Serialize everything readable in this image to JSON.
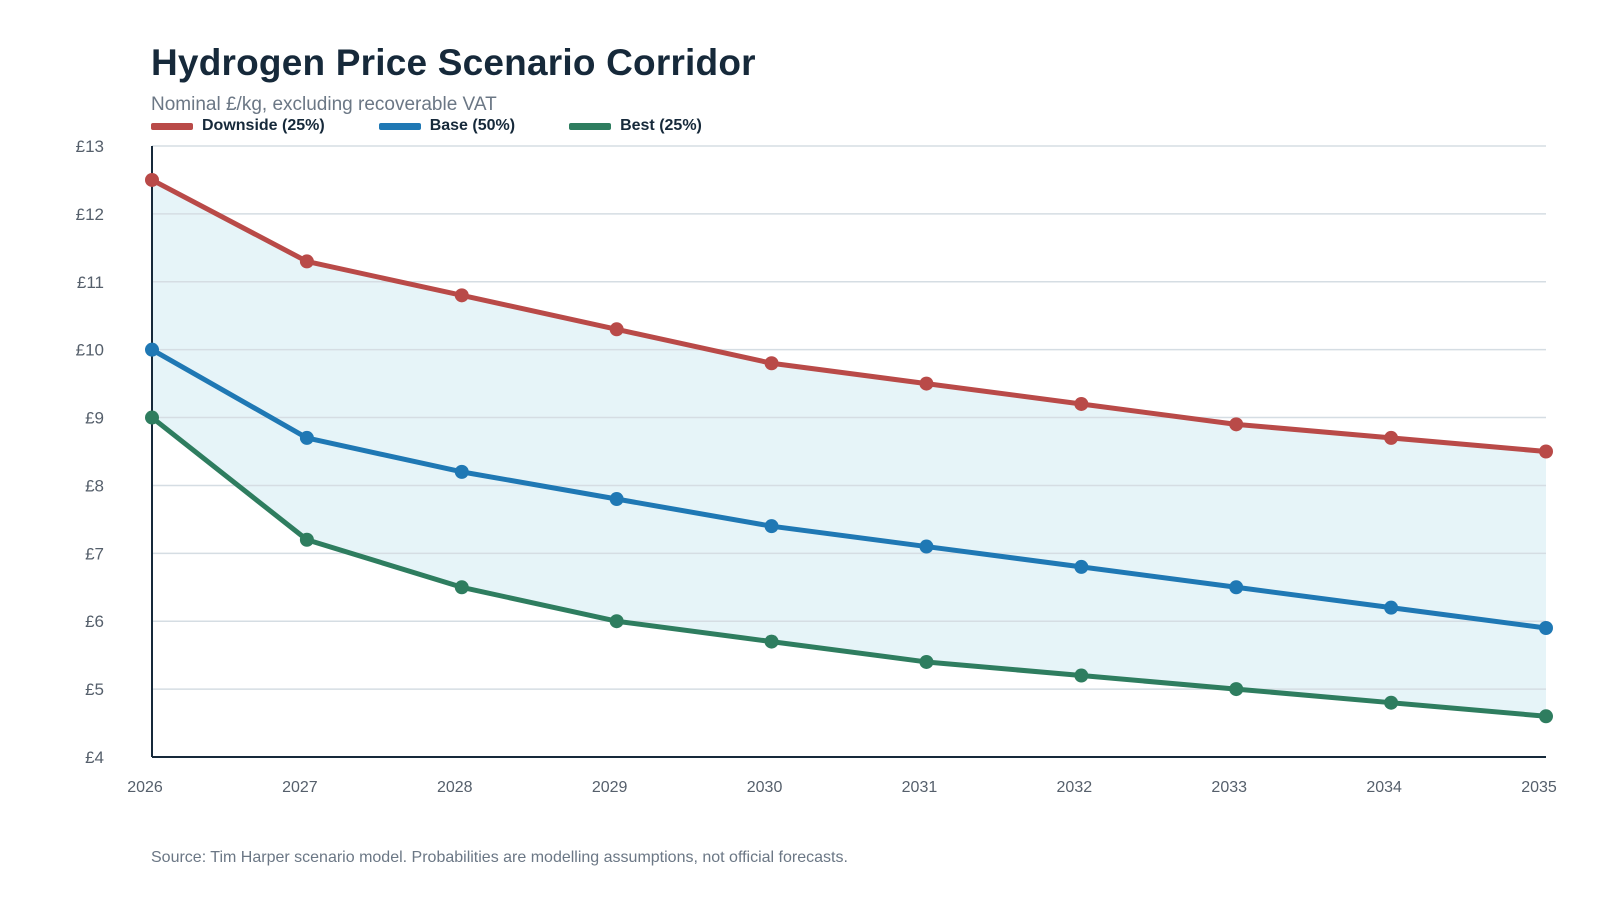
{
  "header": {
    "title": "Hydrogen Price Scenario Corridor",
    "subtitle": "Nominal £/kg, excluding recoverable VAT"
  },
  "footer": {
    "source": "Source: Tim Harper scenario model. Probabilities are modelling assumptions, not official forecasts."
  },
  "colors": {
    "downside": "#b94a48",
    "base": "#1f78b4",
    "best": "#2e7d5f",
    "corridor_fill": "#e6f4f8",
    "grid": "#d5dde3",
    "axis": "#16293a"
  },
  "chart_data": {
    "type": "line",
    "title": "Hydrogen Price Scenario Corridor",
    "subtitle": "Nominal £/kg, excluding recoverable VAT",
    "xlabel": "",
    "ylabel": "",
    "x": [
      "2026",
      "2027",
      "2028",
      "2029",
      "2030",
      "2031",
      "2032",
      "2033",
      "2034",
      "2035"
    ],
    "ylim": [
      4,
      13
    ],
    "ytick_labels": [
      "£4",
      "£5",
      "£6",
      "£7",
      "£8",
      "£9",
      "£10",
      "£11",
      "£12",
      "£13"
    ],
    "ytick_values": [
      4,
      5,
      6,
      7,
      8,
      9,
      10,
      11,
      12,
      13
    ],
    "grid": true,
    "legend_position": "top-left",
    "shaded_corridor": "between Downside and Best",
    "series": [
      {
        "key": "downside",
        "name": "Downside (25%)",
        "color": "#b94a48",
        "values": [
          12.5,
          11.3,
          10.8,
          10.3,
          9.8,
          9.5,
          9.2,
          8.9,
          8.7,
          8.5
        ]
      },
      {
        "key": "base",
        "name": "Base (50%)",
        "color": "#1f78b4",
        "values": [
          10.0,
          8.7,
          8.2,
          7.8,
          7.4,
          7.1,
          6.8,
          6.5,
          6.2,
          5.9
        ]
      },
      {
        "key": "best",
        "name": "Best (25%)",
        "color": "#2e7d5f",
        "values": [
          9.0,
          7.2,
          6.5,
          6.0,
          5.7,
          5.4,
          5.2,
          5.0,
          4.8,
          4.6
        ]
      }
    ]
  }
}
